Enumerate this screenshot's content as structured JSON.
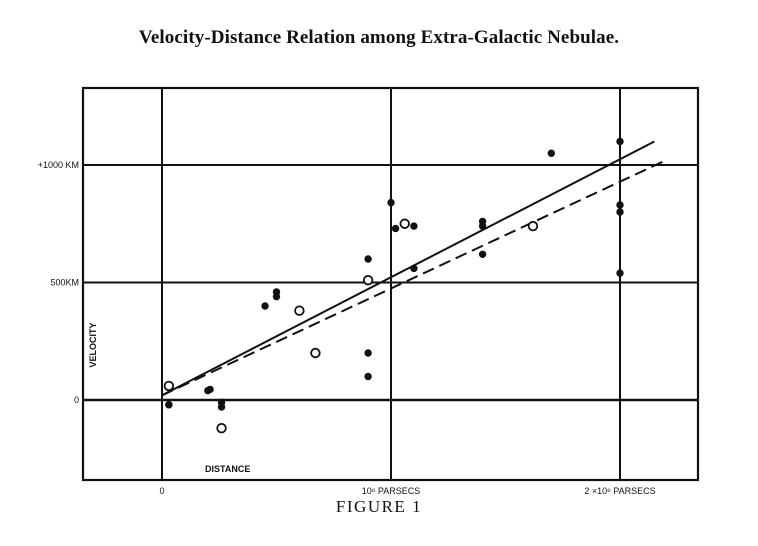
{
  "chart_data": {
    "type": "scatter",
    "title": "Velocity-Distance Relation among Extra-Galactic Nebulae.",
    "caption": "FIGURE 1",
    "xlabel": "DISTANCE",
    "ylabel": "VELOCITY",
    "xlim": [
      0,
      2.3
    ],
    "ylim": [
      -300,
      1350
    ],
    "x_ticks": [
      {
        "value": 0,
        "label": "0"
      },
      {
        "value": 1,
        "label": "10⁶ PARSECS"
      },
      {
        "value": 2,
        "label": "2 ×10⁶ PARSECS"
      }
    ],
    "y_ticks": [
      {
        "value": 1000,
        "label": "+1000 KM"
      },
      {
        "value": 500,
        "label": "500KM"
      },
      {
        "value": 0,
        "label": "0"
      }
    ],
    "grid": true,
    "series": [
      {
        "marker": "filled-circle",
        "x": [
          0.03,
          0.03,
          0.2,
          0.21,
          0.26,
          0.26,
          0.45,
          0.5,
          0.5,
          0.9,
          0.9,
          0.9,
          1.0,
          1.02,
          1.1,
          1.1,
          1.4,
          1.4,
          1.4,
          1.7,
          2.0,
          2.0,
          2.0,
          2.0
        ],
        "y": [
          -20,
          -20,
          40,
          45,
          -10,
          -30,
          400,
          440,
          460,
          600,
          200,
          100,
          840,
          730,
          740,
          560,
          760,
          740,
          620,
          1050,
          830,
          800,
          1100,
          540
        ]
      },
      {
        "marker": "open-circle",
        "x": [
          0.03,
          0.26,
          0.6,
          0.67,
          0.9,
          1.06,
          1.62
        ],
        "y": [
          60,
          -120,
          380,
          200,
          510,
          750,
          740
        ]
      }
    ],
    "fits": [
      {
        "style": "solid",
        "x": [
          0,
          2.15
        ],
        "y": [
          20,
          1100
        ]
      },
      {
        "style": "dashed",
        "x": [
          0,
          2.2
        ],
        "y": [
          20,
          1020
        ]
      }
    ]
  }
}
